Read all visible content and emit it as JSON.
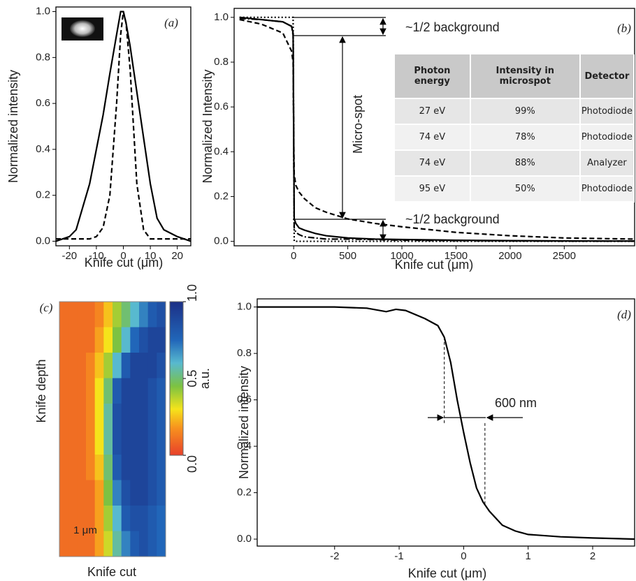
{
  "chart_data": [
    {
      "type": "line",
      "panel_label": "(a)",
      "xlabel": "Knife cut (μm)",
      "ylabel": "Normalized intensity",
      "xlim": [
        -25,
        25
      ],
      "xticks": [
        -20,
        -10,
        0,
        10,
        20
      ],
      "ylim": [
        -0.02,
        1.02
      ],
      "yticks": [
        {
          "value": 0,
          "label": "0.0"
        },
        0.2,
        0.4,
        0.6,
        0.8,
        {
          "value": 1,
          "label": "1.0"
        }
      ],
      "x": [
        -25,
        -20,
        -17.5,
        -15,
        -12.5,
        -10,
        -7.5,
        -5,
        -2.5,
        -1,
        0,
        1,
        2.5,
        5,
        7.5,
        10,
        12.5,
        15,
        20,
        25
      ],
      "series": [
        {
          "color": "#000000",
          "dash": "solid",
          "values": [
            0.0,
            0.02,
            0.05,
            0.15,
            0.25,
            0.4,
            0.55,
            0.73,
            0.9,
            1.0,
            1.0,
            0.95,
            0.85,
            0.65,
            0.45,
            0.25,
            0.1,
            0.05,
            0.02,
            0.0
          ]
        },
        {
          "color": "#000000",
          "dash": "dashed",
          "values": [
            0.01,
            0.01,
            0.01,
            0.01,
            0.01,
            0.02,
            0.06,
            0.2,
            0.6,
            0.9,
            1.0,
            0.95,
            0.75,
            0.25,
            0.05,
            0.01,
            0.01,
            0.01,
            0.01,
            0.01
          ]
        }
      ]
    },
    {
      "type": "line",
      "panel_label": "(b)",
      "xlabel": "Knife cut (μm)",
      "ylabel": "Normalized Intensity",
      "xlim": [
        -550,
        3150
      ],
      "xticks": [
        0,
        500,
        1000,
        1500,
        2000,
        2500
      ],
      "ylim": [
        -0.02,
        1.04
      ],
      "yticks": [
        {
          "value": 0,
          "label": "0.0"
        },
        0.2,
        0.4,
        0.6,
        0.8,
        {
          "value": 1,
          "label": "1.0"
        }
      ],
      "x": [
        -500,
        -300,
        -100,
        -20,
        -5,
        0,
        5,
        20,
        50,
        100,
        200,
        300,
        500,
        750,
        1000,
        1500,
        2000,
        2500,
        3150
      ],
      "series": [
        {
          "color": "#000000",
          "dash": "dotted",
          "values": [
            1.0,
            1.0,
            1.0,
            1.0,
            1.0,
            0.5,
            0.0,
            0.0,
            0.0,
            0.0,
            0.0,
            0.0,
            0.0,
            0.0,
            0.0,
            0.0,
            0.0,
            0.0,
            0.0
          ]
        },
        {
          "color": "#000000",
          "dash": "dashed",
          "values": [
            0.99,
            0.97,
            0.93,
            0.85,
            0.8,
            0.5,
            0.3,
            0.25,
            0.22,
            0.19,
            0.15,
            0.13,
            0.1,
            0.08,
            0.065,
            0.04,
            0.025,
            0.015,
            0.01
          ]
        },
        {
          "color": "#000000",
          "dash": "solid",
          "values": [
            1.0,
            0.99,
            0.98,
            0.96,
            0.93,
            0.5,
            0.1,
            0.08,
            0.06,
            0.05,
            0.035,
            0.025,
            0.015,
            0.01,
            0.008,
            0.005,
            0.003,
            0.002,
            0.001
          ]
        },
        {
          "color": "#000000",
          "dash": "dashdot",
          "values": [
            0.995,
            0.99,
            0.98,
            0.96,
            0.92,
            0.5,
            0.06,
            0.04,
            0.03,
            0.02,
            0.015,
            0.01,
            0.01,
            0.008,
            0.005,
            0.003,
            0.002,
            0.001,
            0.001
          ]
        }
      ],
      "annotations": [
        "~1/2 background",
        "Micro-spot",
        "~1/2 background"
      ],
      "table": {
        "header": [
          "Photon energy",
          "Intensity in microspot",
          "Detector"
        ],
        "rows": [
          [
            "27 eV",
            "99%",
            "Photodiode"
          ],
          [
            "74 eV",
            "78%",
            "Photodiode"
          ],
          [
            "74 eV",
            "88%",
            "Analyzer"
          ],
          [
            "95 eV",
            "50%",
            "Photodiode"
          ]
        ]
      }
    },
    {
      "type": "heatmap",
      "panel_label": "(c)",
      "xlabel": "Knife cut",
      "ylabel": "Knife depth",
      "scalebar_label": "1 μm",
      "zlim": [
        0,
        1
      ],
      "colormap": [
        {
          "value": 0,
          "color": "#e8402a"
        },
        {
          "value": 0.18,
          "color": "#f7931e"
        },
        {
          "value": 0.3,
          "color": "#f5e31b"
        },
        {
          "value": 0.45,
          "color": "#7cc242"
        },
        {
          "value": 0.6,
          "color": "#58b9cf"
        },
        {
          "value": 0.75,
          "color": "#2166b9"
        },
        {
          "value": 1,
          "color": "#1c2f86"
        }
      ],
      "colorbar": {
        "label": "a.u.",
        "ticks": [
          {
            "value": 0,
            "label": "0.0"
          },
          {
            "value": 0.5,
            "label": "0.5"
          },
          {
            "value": 1,
            "label": "1.0"
          }
        ]
      },
      "z": [
        [
          0.1,
          0.1,
          0.1,
          0.1,
          0.15,
          0.25,
          0.4,
          0.5,
          0.6,
          0.7,
          0.8,
          0.85
        ],
        [
          0.1,
          0.1,
          0.1,
          0.1,
          0.2,
          0.3,
          0.45,
          0.6,
          0.75,
          0.85,
          0.9,
          0.9
        ],
        [
          0.1,
          0.1,
          0.1,
          0.15,
          0.25,
          0.4,
          0.6,
          0.8,
          0.9,
          0.9,
          0.9,
          0.85
        ],
        [
          0.1,
          0.1,
          0.1,
          0.15,
          0.3,
          0.5,
          0.8,
          0.9,
          0.9,
          0.9,
          0.85,
          0.8
        ],
        [
          0.1,
          0.1,
          0.1,
          0.15,
          0.3,
          0.55,
          0.85,
          0.9,
          0.9,
          0.9,
          0.85,
          0.8
        ],
        [
          0.1,
          0.1,
          0.1,
          0.15,
          0.3,
          0.55,
          0.85,
          0.9,
          0.9,
          0.9,
          0.85,
          0.8
        ],
        [
          0.1,
          0.1,
          0.1,
          0.15,
          0.25,
          0.5,
          0.8,
          0.9,
          0.9,
          0.9,
          0.85,
          0.8
        ],
        [
          0.1,
          0.1,
          0.1,
          0.1,
          0.2,
          0.45,
          0.7,
          0.85,
          0.9,
          0.9,
          0.85,
          0.8
        ],
        [
          0.1,
          0.1,
          0.1,
          0.1,
          0.2,
          0.4,
          0.6,
          0.8,
          0.85,
          0.85,
          0.8,
          0.75
        ],
        [
          0.1,
          0.1,
          0.1,
          0.1,
          0.2,
          0.35,
          0.55,
          0.7,
          0.8,
          0.85,
          0.8,
          0.75
        ]
      ]
    },
    {
      "type": "line",
      "panel_label": "(d)",
      "xlabel": "Knife cut  (μm)",
      "ylabel": "Normalized intensity",
      "xlim": [
        -3.2,
        2.65
      ],
      "xticks": [
        -2,
        -1,
        0,
        1,
        2
      ],
      "ylim": [
        -0.03,
        1.035
      ],
      "yticks": [
        {
          "value": 0,
          "label": "0.0"
        },
        0.2,
        0.4,
        0.6,
        0.8,
        {
          "value": 1,
          "label": "1.0"
        }
      ],
      "x": [
        -3.2,
        -2.5,
        -2,
        -1.5,
        -1.2,
        -1.05,
        -0.9,
        -0.6,
        -0.4,
        -0.3,
        -0.2,
        -0.1,
        0,
        0.1,
        0.2,
        0.3,
        0.4,
        0.6,
        0.8,
        1,
        1.5,
        2,
        2.65
      ],
      "series": [
        {
          "color": "#000000",
          "dash": "solid",
          "values": [
            1.0,
            1.0,
            1.0,
            0.995,
            0.98,
            0.99,
            0.985,
            0.95,
            0.92,
            0.87,
            0.76,
            0.6,
            0.46,
            0.33,
            0.22,
            0.16,
            0.12,
            0.06,
            0.035,
            0.02,
            0.01,
            0.005,
            0.0
          ]
        }
      ],
      "vlines": [
        -0.3,
        0.33
      ],
      "annotations": [
        "600 nm"
      ]
    }
  ]
}
